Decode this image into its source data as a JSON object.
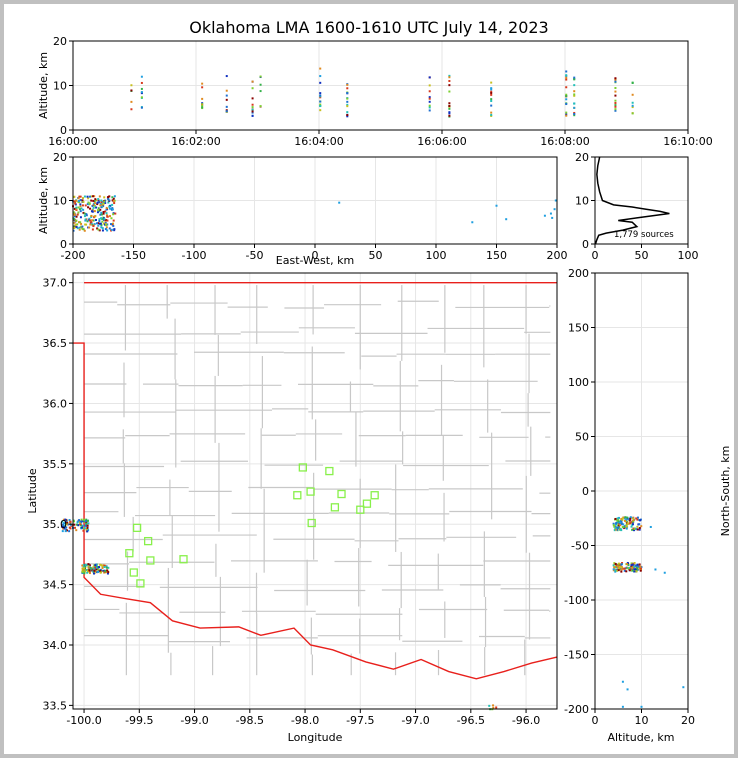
{
  "title": "Oklahoma LMA 1600-1610 UTC July 14, 2023",
  "colors": {
    "state_border": "#e8201c",
    "county": "#c8c8c8",
    "station": "#88f04a",
    "histogram": "#000000"
  },
  "chart_data": [
    {
      "id": "time_height",
      "type": "scatter",
      "xlabel": "",
      "ylabel": "Altitude, km",
      "x_ticks": [
        "16:00:00",
        "16:02:00",
        "16:04:00",
        "16:06:00",
        "16:08:00",
        "16:10:00"
      ],
      "xlim_minutes": [
        0,
        10
      ],
      "ylim": [
        0,
        20
      ],
      "y_ticks": [
        0,
        10,
        20
      ],
      "flash_times_min": [
        0.95,
        1.12,
        2.1,
        2.5,
        2.92,
        3.05,
        4.02,
        4.46,
        5.8,
        6.12,
        6.8,
        8.02,
        8.15,
        8.82,
        9.1
      ],
      "altitude_range_km": [
        3,
        14
      ]
    },
    {
      "id": "ew_altitude",
      "type": "scatter",
      "xlabel": "East-West, km",
      "ylabel": "Altitude, km",
      "xlim": [
        -200,
        200
      ],
      "x_ticks": [
        -200,
        -150,
        -100,
        -50,
        0,
        50,
        100,
        150,
        200
      ],
      "ylim": [
        0,
        20
      ],
      "y_ticks": [
        0,
        10,
        20
      ]
    },
    {
      "id": "altitude_histogram",
      "type": "line",
      "xlim": [
        0,
        100
      ],
      "x_ticks": [
        0,
        50,
        100
      ],
      "ylim": [
        0,
        20
      ],
      "y_ticks": [
        0,
        10,
        20
      ],
      "annotation": "1,779 sources",
      "profile": [
        [
          0.5,
          0
        ],
        [
          2,
          1
        ],
        [
          4,
          2
        ],
        [
          12,
          2.5
        ],
        [
          30,
          3.2
        ],
        [
          45,
          4
        ],
        [
          40,
          5
        ],
        [
          25,
          5.4
        ],
        [
          45,
          6
        ],
        [
          80,
          7
        ],
        [
          70,
          7.5
        ],
        [
          55,
          8
        ],
        [
          40,
          8.5
        ],
        [
          20,
          9
        ],
        [
          8,
          10
        ],
        [
          5,
          12
        ],
        [
          3,
          14
        ],
        [
          2,
          16
        ],
        [
          3,
          18
        ],
        [
          4,
          19
        ],
        [
          5,
          20
        ]
      ]
    },
    {
      "id": "plan_view",
      "type": "scatter",
      "xlabel": "Longitude",
      "ylabel": "Latitude",
      "xlim": [
        -100.1,
        -95.72
      ],
      "ylim": [
        33.47,
        37.08
      ],
      "x_ticks": [
        -100.0,
        -99.5,
        -99.0,
        -98.5,
        -98.0,
        -97.5,
        -97.0,
        -96.5,
        -96.0
      ],
      "y_ticks": [
        33.5,
        34.0,
        34.5,
        35.0,
        35.5,
        36.0,
        36.5,
        37.0
      ],
      "stations": [
        [
          -98.02,
          35.47
        ],
        [
          -97.78,
          35.44
        ],
        [
          -98.07,
          35.24
        ],
        [
          -97.95,
          35.27
        ],
        [
          -97.67,
          35.25
        ],
        [
          -97.37,
          35.24
        ],
        [
          -97.73,
          35.14
        ],
        [
          -97.44,
          35.17
        ],
        [
          -97.5,
          35.12
        ],
        [
          -97.94,
          35.01
        ],
        [
          -99.52,
          34.97
        ],
        [
          -99.42,
          34.86
        ],
        [
          -99.59,
          34.76
        ],
        [
          -99.4,
          34.7
        ],
        [
          -99.1,
          34.71
        ],
        [
          -99.55,
          34.6
        ],
        [
          -99.49,
          34.51
        ]
      ]
    },
    {
      "id": "altitude_ns",
      "type": "scatter",
      "xlabel": "Altitude, km",
      "ylabel": "North-South, km",
      "xlim": [
        0,
        20
      ],
      "x_ticks": [
        0,
        10,
        20
      ],
      "ylim": [
        -200,
        200
      ],
      "y_ticks": [
        -200,
        -150,
        -100,
        -50,
        0,
        50,
        100,
        150,
        200
      ]
    }
  ]
}
